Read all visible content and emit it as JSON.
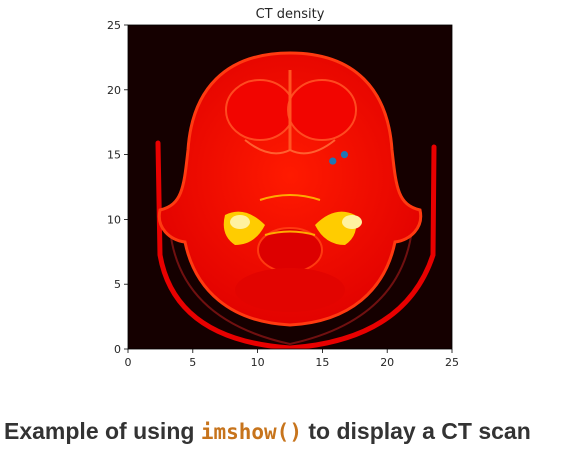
{
  "chart_data": {
    "type": "heatmap",
    "title": "CT density",
    "xlabel": "",
    "ylabel": "",
    "xlim": [
      0,
      25
    ],
    "ylim": [
      0,
      25
    ],
    "x_ticks": [
      0,
      5,
      10,
      15,
      20,
      25
    ],
    "y_ticks": [
      0,
      5,
      10,
      15,
      20,
      25
    ],
    "colormap": "hot",
    "grid": false,
    "overlay_points": {
      "type": "scatter",
      "color": "#1f77b4",
      "x": [
        15.8,
        16.7
      ],
      "y": [
        14.5,
        15.0
      ]
    }
  },
  "caption": {
    "prefix": "Example of using ",
    "code": "imshow()",
    "suffix": " to display a CT scan"
  },
  "colors": {
    "background": "#150000",
    "tissue": "#e50000",
    "bone": "#ffd000",
    "caption_code": "#c7741c",
    "caption_text": "#333333"
  }
}
